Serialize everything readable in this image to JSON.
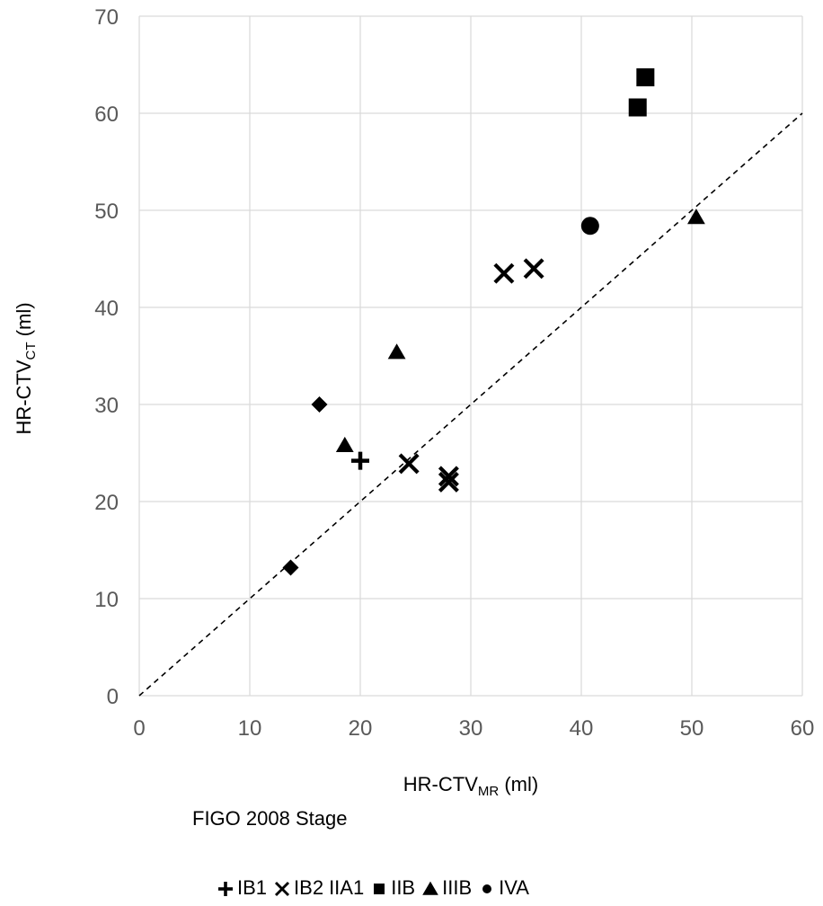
{
  "chart_data": {
    "type": "scatter",
    "xlabel": {
      "prefix": "HR-CTV",
      "sub": "MR",
      "suffix": " (ml)"
    },
    "ylabel": {
      "prefix": "HR-CTV",
      "sub": "CT",
      "suffix": " (ml)"
    },
    "xlim": [
      0,
      60
    ],
    "ylim": [
      0,
      70
    ],
    "xticks": [
      "0",
      "10",
      "20",
      "30",
      "40",
      "50",
      "60"
    ],
    "yticks": [
      "0",
      "10",
      "20",
      "30",
      "40",
      "50",
      "60",
      "70"
    ],
    "grid": true,
    "identity_line": {
      "from": [
        0,
        0
      ],
      "to": [
        60,
        60
      ],
      "style": "dashed"
    },
    "legend_title": "FIGO 2008 Stage",
    "legend_position": "bottom",
    "series": [
      {
        "name": "IB1",
        "marker": "plus",
        "points": [
          [
            20.0,
            24.2
          ]
        ]
      },
      {
        "name": "IB2",
        "marker": "x",
        "points": [
          [
            24.4,
            23.9
          ],
          [
            28.0,
            22.6
          ],
          [
            28.0,
            22.0
          ],
          [
            33.0,
            43.5
          ],
          [
            35.7,
            44.0
          ]
        ]
      },
      {
        "name": "IIA1",
        "marker": "diamond",
        "points": [
          [
            13.7,
            13.2
          ],
          [
            16.3,
            30.0
          ]
        ]
      },
      {
        "name": "IIB",
        "marker": "square",
        "points": [
          [
            45.1,
            60.6
          ],
          [
            45.8,
            63.7
          ]
        ]
      },
      {
        "name": "IIIB",
        "marker": "triangle",
        "points": [
          [
            18.6,
            25.8
          ],
          [
            23.3,
            35.4
          ],
          [
            50.4,
            49.3
          ]
        ]
      },
      {
        "name": "IVA",
        "marker": "circle",
        "points": [
          [
            40.8,
            48.4
          ]
        ]
      }
    ]
  }
}
